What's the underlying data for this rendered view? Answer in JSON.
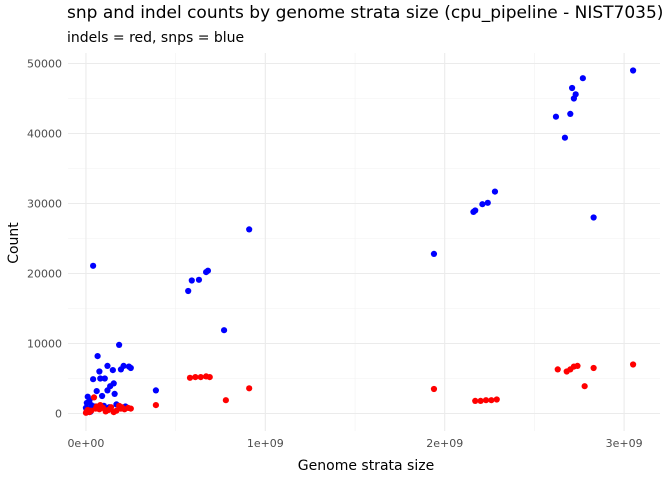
{
  "chart_data": {
    "type": "scatter",
    "title": "snp and indel counts by genome strata size (cpu_pipeline - NIST7035)",
    "subtitle": "indels = red, snps = blue",
    "xlabel": "Genome strata size",
    "ylabel": "Count",
    "xlim": [
      -100000000,
      3200000000
    ],
    "ylim": [
      -2500000,
      51500000
    ],
    "ylim_display": [
      -2500,
      51500
    ],
    "x_ticks": [
      {
        "value": 0,
        "label": "0e+00"
      },
      {
        "value": 1000000000,
        "label": "1e+09"
      },
      {
        "value": 2000000000,
        "label": "2e+09"
      },
      {
        "value": 3000000000,
        "label": "3e+09"
      }
    ],
    "y_ticks": [
      {
        "value": 0,
        "label": "0"
      },
      {
        "value": 10000,
        "label": "10000"
      },
      {
        "value": 20000,
        "label": "20000"
      },
      {
        "value": 30000,
        "label": "30000"
      },
      {
        "value": 40000,
        "label": "40000"
      },
      {
        "value": 50000,
        "label": "50000"
      }
    ],
    "grid": true,
    "series": [
      {
        "color": "#0000ff",
        "points": [
          [
            40000000,
            21100
          ],
          [
            65000000,
            8200
          ],
          [
            75000000,
            6000
          ],
          [
            120000000,
            6800
          ],
          [
            150000000,
            6200
          ],
          [
            185000000,
            9800
          ],
          [
            210000000,
            6800
          ],
          [
            240000000,
            6700
          ],
          [
            250000000,
            6500
          ],
          [
            195000000,
            6300
          ],
          [
            155000000,
            4300
          ],
          [
            135000000,
            3900
          ],
          [
            120000000,
            3300
          ],
          [
            80000000,
            5000
          ],
          [
            105000000,
            5000
          ],
          [
            40000000,
            4900
          ],
          [
            60000000,
            3200
          ],
          [
            160000000,
            2800
          ],
          [
            90000000,
            2500
          ],
          [
            10000000,
            2400
          ],
          [
            20000000,
            1900
          ],
          [
            5000000,
            1500
          ],
          [
            30000000,
            1200
          ],
          [
            0,
            800
          ],
          [
            8000000,
            600
          ],
          [
            15000000,
            400
          ],
          [
            25000000,
            250
          ],
          [
            3000000,
            150
          ],
          [
            50000000,
            1000
          ],
          [
            100000000,
            1100
          ],
          [
            130000000,
            900
          ],
          [
            170000000,
            1300
          ],
          [
            220000000,
            1000
          ],
          [
            390000000,
            3300
          ],
          [
            570000000,
            17500
          ],
          [
            590000000,
            19000
          ],
          [
            630000000,
            19100
          ],
          [
            670000000,
            20200
          ],
          [
            680000000,
            20400
          ],
          [
            770000000,
            11900
          ],
          [
            910000000,
            26300
          ],
          [
            1940000000,
            22800
          ],
          [
            2160000000,
            28800
          ],
          [
            2170000000,
            29000
          ],
          [
            2210000000,
            29900
          ],
          [
            2240000000,
            30100
          ],
          [
            2280000000,
            31700
          ],
          [
            2620000000,
            42400
          ],
          [
            2670000000,
            39400
          ],
          [
            2700000000,
            42800
          ],
          [
            2710000000,
            46500
          ],
          [
            2720000000,
            45000
          ],
          [
            2730000000,
            45600
          ],
          [
            2770000000,
            47900
          ],
          [
            2830000000,
            28000
          ],
          [
            3050000000,
            49000
          ]
        ]
      },
      {
        "color": "#ff0000",
        "points": [
          [
            0,
            100
          ],
          [
            5000000,
            300
          ],
          [
            10000000,
            500
          ],
          [
            20000000,
            200
          ],
          [
            30000000,
            400
          ],
          [
            45000000,
            2300
          ],
          [
            55000000,
            700
          ],
          [
            60000000,
            1000
          ],
          [
            75000000,
            600
          ],
          [
            80000000,
            1200
          ],
          [
            95000000,
            800
          ],
          [
            110000000,
            300
          ],
          [
            125000000,
            500
          ],
          [
            140000000,
            900
          ],
          [
            155000000,
            200
          ],
          [
            170000000,
            400
          ],
          [
            185000000,
            1100
          ],
          [
            195000000,
            700
          ],
          [
            200000000,
            900
          ],
          [
            215000000,
            600
          ],
          [
            235000000,
            800
          ],
          [
            250000000,
            700
          ],
          [
            390000000,
            1200
          ],
          [
            580000000,
            5100
          ],
          [
            610000000,
            5200
          ],
          [
            640000000,
            5200
          ],
          [
            670000000,
            5300
          ],
          [
            690000000,
            5200
          ],
          [
            780000000,
            1900
          ],
          [
            910000000,
            3600
          ],
          [
            1940000000,
            3500
          ],
          [
            2170000000,
            1800
          ],
          [
            2200000000,
            1800
          ],
          [
            2230000000,
            1900
          ],
          [
            2260000000,
            1900
          ],
          [
            2290000000,
            2000
          ],
          [
            2630000000,
            6300
          ],
          [
            2680000000,
            6000
          ],
          [
            2700000000,
            6300
          ],
          [
            2720000000,
            6700
          ],
          [
            2740000000,
            6800
          ],
          [
            2780000000,
            3900
          ],
          [
            2830000000,
            6500
          ],
          [
            3050000000,
            7000
          ]
        ]
      }
    ]
  }
}
